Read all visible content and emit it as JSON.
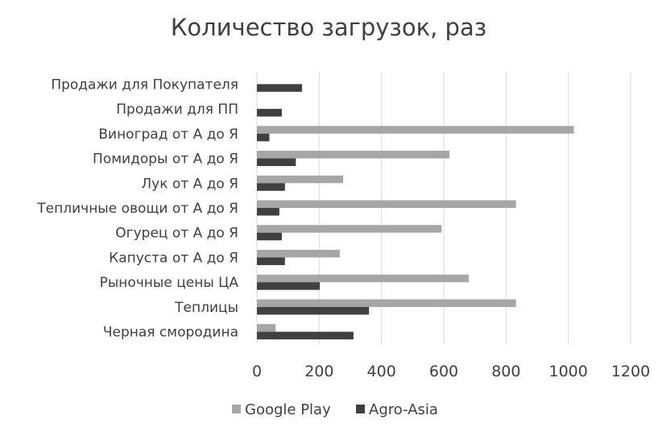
{
  "chart_data": {
    "type": "bar",
    "orientation": "horizontal",
    "title": "Количество загрузок, раз",
    "xlabel": "",
    "ylabel": "",
    "xlim": [
      0,
      1200
    ],
    "ticks": [
      0,
      200,
      400,
      600,
      800,
      1000,
      1200
    ],
    "grid": true,
    "legend_position": "bottom",
    "categories": [
      "Продажи для Покупателя",
      "Продажи для ПП",
      "Виноград от А до Я",
      "Помидоры от А до Я",
      "Лук от А до Я",
      "Тепличные овощи от А до Я",
      "Огурец от А до Я",
      "Капуста от А до Я",
      "Рыночные цены ЦА",
      "Теплицы",
      "Черная смородина"
    ],
    "series": [
      {
        "name": "Google Play",
        "color": "#a6a6a6",
        "values": [
          0,
          0,
          1018,
          618,
          277,
          832,
          593,
          266,
          680,
          832,
          60
        ]
      },
      {
        "name": "Agro-Asia",
        "color": "#404040",
        "values": [
          145,
          80,
          40,
          125,
          90,
          72,
          80,
          90,
          202,
          360,
          310
        ]
      }
    ]
  }
}
